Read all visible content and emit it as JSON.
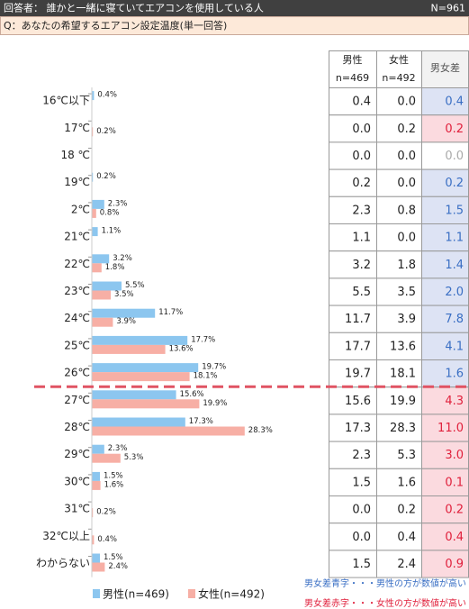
{
  "header": {
    "respondents": "回答者： 誰かと一緒に寝ていてエアコンを使用している人",
    "n": "N=961"
  },
  "question": "Q：あなたの希望するエアコン設定温度(単一回答)",
  "chart_data": {
    "type": "bar",
    "categories": [
      "16℃以下",
      "17℃",
      "18 ℃",
      "19℃",
      "2℃",
      "21℃",
      "22℃",
      "23℃",
      "24℃",
      "25℃",
      "26℃",
      "27℃",
      "28℃",
      "29℃",
      "30℃",
      "31℃",
      "32℃以上",
      "わからない"
    ],
    "series": [
      {
        "name": "男性(n=469)",
        "color": "#8cc6ef",
        "values": [
          0.4,
          0.0,
          0.0,
          0.2,
          2.3,
          1.1,
          3.2,
          5.5,
          11.7,
          17.7,
          19.7,
          15.6,
          17.3,
          2.3,
          1.5,
          0.0,
          0.0,
          1.5
        ],
        "value_labels": [
          "0.4%",
          null,
          null,
          "0.2%",
          "2.3%",
          "1.1%",
          "3.2%",
          "5.5%",
          "11.7%",
          "17.7%",
          "19.7%",
          "15.6%",
          "17.3%",
          "2.3%",
          "1.5%",
          null,
          null,
          "1.5%"
        ]
      },
      {
        "name": "女性(n=492)",
        "color": "#f7afa5",
        "values": [
          0.0,
          0.2,
          0.0,
          0.0,
          0.8,
          0.0,
          1.8,
          3.5,
          3.9,
          13.6,
          18.1,
          19.9,
          28.3,
          5.3,
          1.6,
          0.2,
          0.4,
          2.4
        ],
        "value_labels": [
          null,
          "0.2%",
          null,
          null,
          "0.8%",
          null,
          "1.8%",
          "3.5%",
          "3.9%",
          "13.6%",
          "18.1%",
          "19.9%",
          "28.3%",
          "5.3%",
          "1.6%",
          "0.2%",
          "0.4%",
          "2.4%"
        ]
      }
    ]
  },
  "table": {
    "columns": [
      [
        "男性",
        "n=469"
      ],
      [
        "女性",
        "n=492"
      ],
      [
        "男女差"
      ]
    ],
    "rows": [
      [
        "0.4",
        "0.0",
        "0.4"
      ],
      [
        "0.0",
        "0.2",
        "0.2"
      ],
      [
        "0.0",
        "0.0",
        "0.0"
      ],
      [
        "0.2",
        "0.0",
        "0.2"
      ],
      [
        "2.3",
        "0.8",
        "1.5"
      ],
      [
        "1.1",
        "0.0",
        "1.1"
      ],
      [
        "3.2",
        "1.8",
        "1.4"
      ],
      [
        "5.5",
        "3.5",
        "2.0"
      ],
      [
        "11.7",
        "3.9",
        "7.8"
      ],
      [
        "17.7",
        "13.6",
        "4.1"
      ],
      [
        "19.7",
        "18.1",
        "1.6"
      ],
      [
        "15.6",
        "19.9",
        "4.3"
      ],
      [
        "17.3",
        "28.3",
        "11.0"
      ],
      [
        "2.3",
        "5.3",
        "3.0"
      ],
      [
        "1.5",
        "1.6",
        "0.1"
      ],
      [
        "0.0",
        "0.2",
        "0.2"
      ],
      [
        "0.0",
        "0.4",
        "0.4"
      ],
      [
        "1.5",
        "2.4",
        "0.9"
      ]
    ]
  },
  "notes": [
    {
      "text": "男女差青字・・・男性の方が数値が高い",
      "color": "#3a6fc4"
    },
    {
      "text": "男女差赤字・・・女性の方が数値が高い",
      "color": "#e0203c"
    }
  ]
}
